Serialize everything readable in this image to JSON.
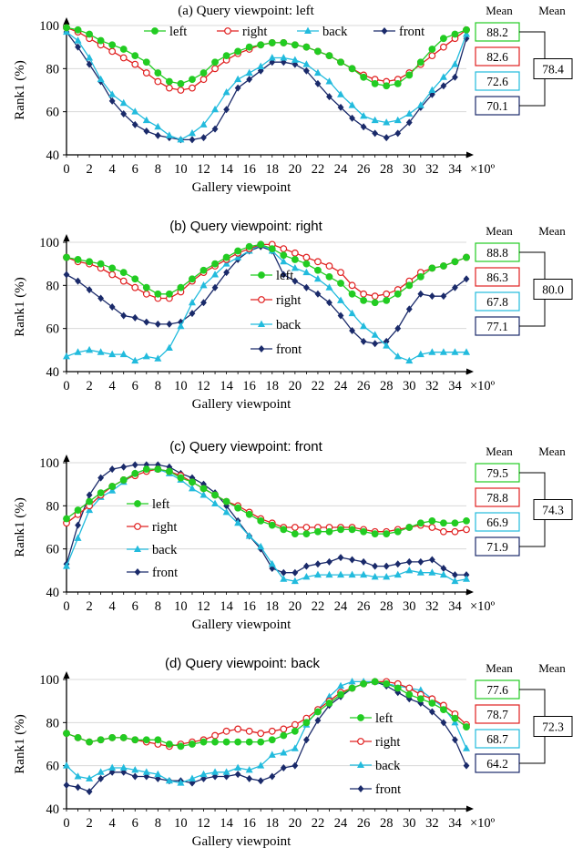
{
  "colors": {
    "left": "#22cc22",
    "right": "#e02020",
    "back": "#22bbdd",
    "front": "#1a2a6a",
    "grid": "#d8d8d8"
  },
  "common": {
    "ylabel": "Rank1  (%)",
    "xlabel": "Gallery viewpoint",
    "x_unit": "×10º",
    "yticks": [
      40,
      60,
      80,
      100
    ],
    "xticks": [
      0,
      2,
      4,
      6,
      8,
      10,
      12,
      14,
      16,
      18,
      20,
      22,
      24,
      26,
      28,
      30,
      32,
      34
    ],
    "mean_header": "Mean",
    "legend": [
      "left",
      "right",
      "back",
      "front"
    ]
  },
  "chart_data": [
    {
      "type": "line",
      "title": "(a)  Query viewpoint:  left",
      "xlabel": "Gallery viewpoint",
      "ylabel": "Rank1  (%)",
      "ylim": [
        40,
        100
      ],
      "xlim": [
        0,
        35
      ],
      "x": [
        0,
        1,
        2,
        3,
        4,
        5,
        6,
        7,
        8,
        9,
        10,
        11,
        12,
        13,
        14,
        15,
        16,
        17,
        18,
        19,
        20,
        21,
        22,
        23,
        24,
        25,
        26,
        27,
        28,
        29,
        30,
        31,
        32,
        33,
        34,
        35
      ],
      "legend_position": "top",
      "series": [
        {
          "name": "left",
          "values": [
            99,
            98,
            96,
            93,
            91,
            89,
            86,
            83,
            78,
            74,
            73,
            75,
            78,
            83,
            86,
            88,
            90,
            91,
            92,
            92,
            91,
            90,
            88,
            86,
            83,
            80,
            76,
            73,
            72,
            73,
            77,
            83,
            89,
            94,
            96,
            98
          ]
        },
        {
          "name": "right",
          "values": [
            99,
            97,
            94,
            91,
            88,
            85,
            82,
            78,
            74,
            71,
            70,
            71,
            75,
            80,
            84,
            87,
            89,
            91,
            92,
            92,
            91,
            90,
            88,
            86,
            83,
            80,
            77,
            75,
            74,
            75,
            78,
            82,
            86,
            90,
            94,
            98
          ]
        },
        {
          "name": "back",
          "values": [
            97,
            93,
            85,
            75,
            68,
            64,
            60,
            56,
            53,
            49,
            47,
            50,
            54,
            61,
            69,
            75,
            78,
            81,
            85,
            85,
            84,
            82,
            78,
            74,
            68,
            63,
            58,
            56,
            55,
            56,
            59,
            63,
            70,
            76,
            82,
            96
          ]
        },
        {
          "name": "front",
          "values": [
            97,
            90,
            82,
            74,
            65,
            59,
            54,
            51,
            49,
            48,
            47,
            47,
            48,
            52,
            61,
            71,
            75,
            79,
            83,
            83,
            82,
            79,
            73,
            67,
            62,
            57,
            53,
            50,
            48,
            50,
            55,
            62,
            68,
            72,
            76,
            94
          ]
        }
      ],
      "means": [
        88.2,
        82.6,
        72.6,
        70.1
      ],
      "overall_mean": 78.4
    },
    {
      "type": "line",
      "title": "(b)  Query viewpoint:  right",
      "xlabel": "Gallery viewpoint",
      "ylabel": "Rank1  (%)",
      "ylim": [
        40,
        100
      ],
      "xlim": [
        0,
        35
      ],
      "x": [
        0,
        1,
        2,
        3,
        4,
        5,
        6,
        7,
        8,
        9,
        10,
        11,
        12,
        13,
        14,
        15,
        16,
        17,
        18,
        19,
        20,
        21,
        22,
        23,
        24,
        25,
        26,
        27,
        28,
        29,
        30,
        31,
        32,
        33,
        34,
        35
      ],
      "legend_position": "middle",
      "series": [
        {
          "name": "left",
          "values": [
            93,
            92,
            91,
            90,
            88,
            86,
            83,
            79,
            76,
            76,
            79,
            83,
            87,
            90,
            93,
            96,
            98,
            99,
            97,
            94,
            92,
            90,
            87,
            84,
            81,
            76,
            73,
            72,
            73,
            76,
            80,
            84,
            88,
            89,
            91,
            93
          ]
        },
        {
          "name": "right",
          "values": [
            93,
            91,
            90,
            88,
            85,
            82,
            79,
            76,
            74,
            74,
            77,
            82,
            86,
            89,
            92,
            95,
            97,
            99,
            99,
            97,
            95,
            93,
            91,
            89,
            86,
            80,
            76,
            75,
            76,
            78,
            82,
            86,
            88,
            89,
            91,
            93
          ]
        },
        {
          "name": "back",
          "values": [
            47,
            49,
            50,
            49,
            48,
            48,
            45,
            47,
            46,
            51,
            61,
            72,
            80,
            85,
            90,
            93,
            96,
            99,
            96,
            91,
            88,
            86,
            83,
            79,
            73,
            67,
            61,
            57,
            52,
            47,
            45,
            48,
            49,
            49,
            49,
            49
          ]
        },
        {
          "name": "front",
          "values": [
            85,
            82,
            78,
            74,
            70,
            66,
            65,
            63,
            62,
            62,
            63,
            67,
            72,
            79,
            86,
            92,
            96,
            98,
            96,
            85,
            82,
            79,
            76,
            72,
            66,
            59,
            54,
            53,
            54,
            60,
            69,
            76,
            75,
            75,
            79,
            83
          ]
        }
      ],
      "means": [
        88.8,
        86.3,
        67.8,
        77.1
      ],
      "overall_mean": 80.0
    },
    {
      "type": "line",
      "title": "(c)  Query viewpoint:  front",
      "xlabel": "Gallery viewpoint",
      "ylabel": "Rank1  (%)",
      "ylim": [
        40,
        100
      ],
      "xlim": [
        0,
        35
      ],
      "x": [
        0,
        1,
        2,
        3,
        4,
        5,
        6,
        7,
        8,
        9,
        10,
        11,
        12,
        13,
        14,
        15,
        16,
        17,
        18,
        19,
        20,
        21,
        22,
        23,
        24,
        25,
        26,
        27,
        28,
        29,
        30,
        31,
        32,
        33,
        34,
        35
      ],
      "legend_position": "left",
      "series": [
        {
          "name": "left",
          "values": [
            74,
            78,
            82,
            86,
            89,
            92,
            95,
            97,
            97,
            96,
            93,
            91,
            88,
            85,
            82,
            79,
            76,
            73,
            71,
            69,
            67,
            67,
            68,
            68,
            69,
            69,
            68,
            67,
            67,
            68,
            70,
            72,
            73,
            72,
            72,
            73
          ]
        },
        {
          "name": "right",
          "values": [
            72,
            76,
            80,
            85,
            89,
            92,
            94,
            96,
            97,
            96,
            94,
            91,
            88,
            85,
            82,
            80,
            77,
            74,
            72,
            70,
            70,
            70,
            70,
            70,
            70,
            70,
            69,
            68,
            68,
            69,
            70,
            71,
            70,
            68,
            68,
            69
          ]
        },
        {
          "name": "back",
          "values": [
            52,
            65,
            78,
            84,
            87,
            91,
            95,
            97,
            97,
            95,
            92,
            88,
            85,
            81,
            77,
            72,
            66,
            61,
            53,
            46,
            45,
            47,
            48,
            48,
            48,
            48,
            48,
            47,
            47,
            48,
            50,
            49,
            49,
            48,
            45,
            46
          ]
        },
        {
          "name": "front",
          "values": [
            53,
            71,
            85,
            93,
            97,
            98,
            99,
            99,
            99,
            98,
            95,
            93,
            90,
            86,
            80,
            73,
            66,
            60,
            51,
            49,
            49,
            52,
            53,
            54,
            56,
            55,
            54,
            52,
            52,
            53,
            54,
            54,
            55,
            51,
            48,
            48
          ]
        }
      ],
      "means": [
        79.5,
        78.8,
        66.9,
        71.9
      ],
      "overall_mean": 74.3
    },
    {
      "type": "line",
      "title": "(d)  Query viewpoint:  back",
      "xlabel": "Gallery viewpoint",
      "ylabel": "Rank1  (%)",
      "ylim": [
        40,
        100
      ],
      "xlim": [
        0,
        35
      ],
      "x": [
        0,
        1,
        2,
        3,
        4,
        5,
        6,
        7,
        8,
        9,
        10,
        11,
        12,
        13,
        14,
        15,
        16,
        17,
        18,
        19,
        20,
        21,
        22,
        23,
        24,
        25,
        26,
        27,
        28,
        29,
        30,
        31,
        32,
        33,
        34,
        35
      ],
      "legend_position": "middle",
      "series": [
        {
          "name": "left",
          "values": [
            75,
            73,
            71,
            72,
            73,
            73,
            72,
            72,
            72,
            70,
            69,
            70,
            71,
            71,
            71,
            71,
            71,
            71,
            72,
            74,
            76,
            80,
            85,
            89,
            93,
            96,
            98,
            99,
            98,
            96,
            93,
            91,
            89,
            86,
            82,
            78
          ]
        },
        {
          "name": "right",
          "values": [
            75,
            73,
            71,
            72,
            73,
            73,
            72,
            71,
            70,
            69,
            70,
            71,
            72,
            74,
            76,
            77,
            76,
            75,
            76,
            77,
            79,
            82,
            86,
            90,
            94,
            96,
            98,
            99,
            99,
            98,
            96,
            93,
            91,
            88,
            84,
            79
          ]
        },
        {
          "name": "back",
          "values": [
            60,
            55,
            54,
            57,
            59,
            59,
            58,
            57,
            56,
            53,
            52,
            54,
            56,
            57,
            57,
            59,
            58,
            60,
            65,
            66,
            68,
            79,
            86,
            92,
            97,
            99,
            99,
            99,
            98,
            97,
            96,
            95,
            91,
            87,
            80,
            68
          ]
        },
        {
          "name": "front",
          "values": [
            51,
            50,
            48,
            54,
            57,
            57,
            55,
            55,
            54,
            53,
            53,
            52,
            54,
            55,
            55,
            56,
            54,
            53,
            55,
            59,
            60,
            72,
            81,
            88,
            92,
            96,
            98,
            99,
            97,
            94,
            91,
            89,
            85,
            80,
            72,
            60
          ]
        }
      ],
      "means": [
        77.6,
        78.7,
        68.7,
        64.2
      ],
      "overall_mean": 72.3
    }
  ]
}
